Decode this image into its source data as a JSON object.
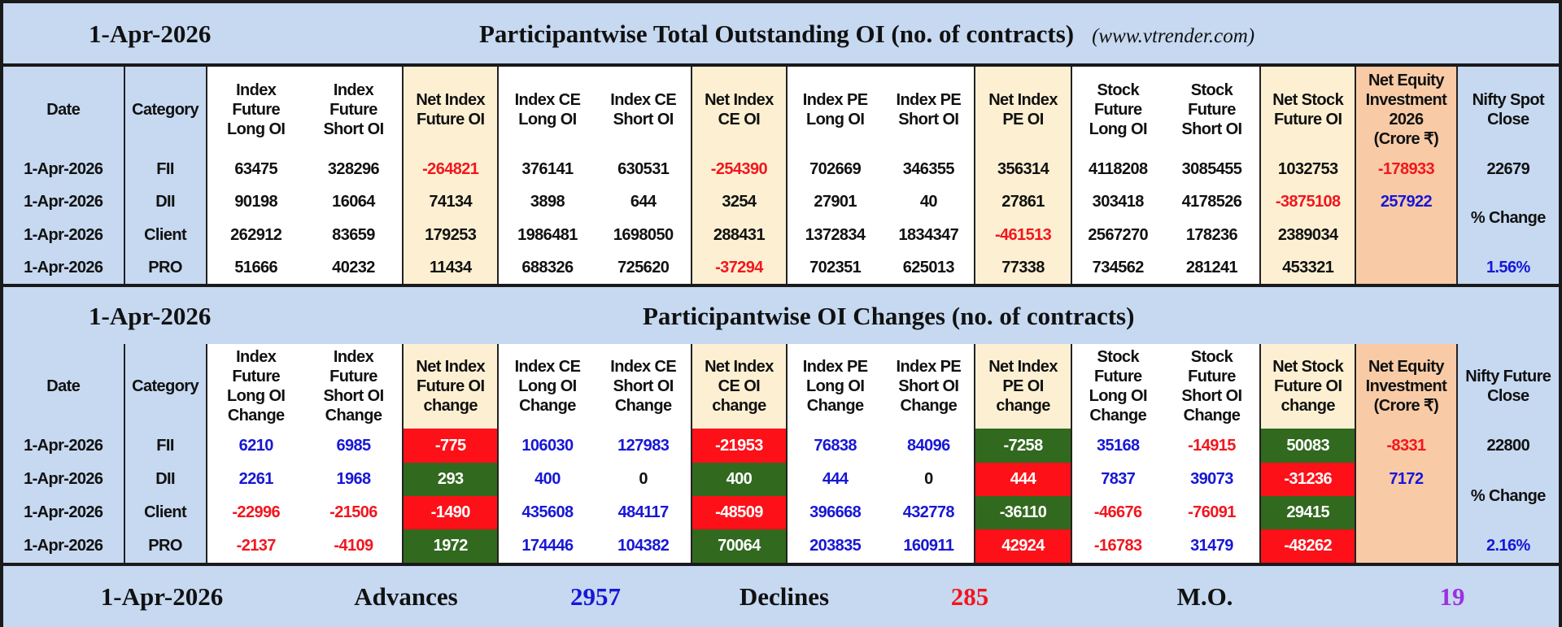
{
  "table1": {
    "date": "1-Apr-2026",
    "title": "Participantwise Total Outstanding OI (no. of contracts)",
    "source": "(www.vtrender.com)",
    "headers": [
      "Date",
      "Category",
      "Index\nFuture\nLong OI",
      "Index\nFuture\nShort OI",
      "Net Index\nFuture OI",
      "Index CE\nLong OI",
      "Index CE\nShort OI",
      "Net Index\nCE OI",
      "Index PE\nLong OI",
      "Index PE\nShort OI",
      "Net Index\nPE OI",
      "Stock\nFuture\nLong OI",
      "Stock\nFuture\nShort OI",
      "Net Stock\nFuture OI",
      "Net Equity\nInvestment\n2026\n(Crore ₹)",
      "Nifty Spot\nClose"
    ],
    "rows": [
      {
        "date": "1-Apr-2026",
        "category": "FII",
        "cells": [
          {
            "v": "63475",
            "c": "black"
          },
          {
            "v": "328296",
            "c": "black"
          },
          {
            "v": "-264821",
            "c": "red"
          },
          {
            "v": "376141",
            "c": "black"
          },
          {
            "v": "630531",
            "c": "black"
          },
          {
            "v": "-254390",
            "c": "red"
          },
          {
            "v": "702669",
            "c": "black"
          },
          {
            "v": "346355",
            "c": "black"
          },
          {
            "v": "356314",
            "c": "black"
          },
          {
            "v": "4118208",
            "c": "black"
          },
          {
            "v": "3085455",
            "c": "black"
          },
          {
            "v": "1032753",
            "c": "black"
          }
        ]
      },
      {
        "date": "1-Apr-2026",
        "category": "DII",
        "cells": [
          {
            "v": "90198",
            "c": "black"
          },
          {
            "v": "16064",
            "c": "black"
          },
          {
            "v": "74134",
            "c": "black"
          },
          {
            "v": "3898",
            "c": "black"
          },
          {
            "v": "644",
            "c": "black"
          },
          {
            "v": "3254",
            "c": "black"
          },
          {
            "v": "27901",
            "c": "black"
          },
          {
            "v": "40",
            "c": "black"
          },
          {
            "v": "27861",
            "c": "black"
          },
          {
            "v": "303418",
            "c": "black"
          },
          {
            "v": "4178526",
            "c": "black"
          },
          {
            "v": "-3875108",
            "c": "red"
          }
        ]
      },
      {
        "date": "1-Apr-2026",
        "category": "Client",
        "cells": [
          {
            "v": "262912",
            "c": "black"
          },
          {
            "v": "83659",
            "c": "black"
          },
          {
            "v": "179253",
            "c": "black"
          },
          {
            "v": "1986481",
            "c": "black"
          },
          {
            "v": "1698050",
            "c": "black"
          },
          {
            "v": "288431",
            "c": "black"
          },
          {
            "v": "1372834",
            "c": "black"
          },
          {
            "v": "1834347",
            "c": "black"
          },
          {
            "v": "-461513",
            "c": "red"
          },
          {
            "v": "2567270",
            "c": "black"
          },
          {
            "v": "178236",
            "c": "black"
          },
          {
            "v": "2389034",
            "c": "black"
          }
        ]
      },
      {
        "date": "1-Apr-2026",
        "category": "PRO",
        "cells": [
          {
            "v": "51666",
            "c": "black"
          },
          {
            "v": "40232",
            "c": "black"
          },
          {
            "v": "11434",
            "c": "black"
          },
          {
            "v": "688326",
            "c": "black"
          },
          {
            "v": "725620",
            "c": "black"
          },
          {
            "v": "-37294",
            "c": "red"
          },
          {
            "v": "702351",
            "c": "black"
          },
          {
            "v": "625013",
            "c": "black"
          },
          {
            "v": "77338",
            "c": "black"
          },
          {
            "v": "734562",
            "c": "black"
          },
          {
            "v": "281241",
            "c": "black"
          },
          {
            "v": "453321",
            "c": "black"
          }
        ]
      }
    ],
    "net_equity": [
      {
        "v": "-178933",
        "c": "red"
      },
      {
        "v": "257922",
        "c": "blue"
      }
    ],
    "nifty": {
      "close": "22679",
      "pct_label": "% Change",
      "pct": "1.56%"
    }
  },
  "table2": {
    "date": "1-Apr-2026",
    "title": "Participantwise OI Changes (no. of contracts)",
    "headers": [
      "Date",
      "Category",
      "Index\nFuture\nLong OI\nChange",
      "Index\nFuture\nShort OI\nChange",
      "Net Index\nFuture OI\nchange",
      "Index CE\nLong OI\nChange",
      "Index CE\nShort OI\nChange",
      "Net Index\nCE OI\nchange",
      "Index PE\nLong OI\nChange",
      "Index PE\nShort OI\nChange",
      "Net Index\nPE OI\nchange",
      "Stock\nFuture\nLong OI\nChange",
      "Stock\nFuture\nShort OI\nChange",
      "Net Stock\nFuture OI\nchange",
      "Net Equity\nInvestment\n(Crore ₹)",
      "Nifty Future\nClose"
    ],
    "rows": [
      {
        "date": "1-Apr-2026",
        "category": "FII",
        "cells": [
          {
            "v": "6210",
            "c": "blue"
          },
          {
            "v": "6985",
            "c": "blue"
          },
          {
            "v": "-775",
            "c": "bg-red"
          },
          {
            "v": "106030",
            "c": "blue"
          },
          {
            "v": "127983",
            "c": "blue"
          },
          {
            "v": "-21953",
            "c": "bg-red"
          },
          {
            "v": "76838",
            "c": "blue"
          },
          {
            "v": "84096",
            "c": "blue"
          },
          {
            "v": "-7258",
            "c": "bg-green"
          },
          {
            "v": "35168",
            "c": "blue"
          },
          {
            "v": "-14915",
            "c": "red"
          },
          {
            "v": "50083",
            "c": "bg-green"
          }
        ]
      },
      {
        "date": "1-Apr-2026",
        "category": "DII",
        "cells": [
          {
            "v": "2261",
            "c": "blue"
          },
          {
            "v": "1968",
            "c": "blue"
          },
          {
            "v": "293",
            "c": "bg-green"
          },
          {
            "v": "400",
            "c": "blue"
          },
          {
            "v": "0",
            "c": "black"
          },
          {
            "v": "400",
            "c": "bg-green"
          },
          {
            "v": "444",
            "c": "blue"
          },
          {
            "v": "0",
            "c": "black"
          },
          {
            "v": "444",
            "c": "bg-red"
          },
          {
            "v": "7837",
            "c": "blue"
          },
          {
            "v": "39073",
            "c": "blue"
          },
          {
            "v": "-31236",
            "c": "bg-red"
          }
        ]
      },
      {
        "date": "1-Apr-2026",
        "category": "Client",
        "cells": [
          {
            "v": "-22996",
            "c": "red"
          },
          {
            "v": "-21506",
            "c": "red"
          },
          {
            "v": "-1490",
            "c": "bg-red"
          },
          {
            "v": "435608",
            "c": "blue"
          },
          {
            "v": "484117",
            "c": "blue"
          },
          {
            "v": "-48509",
            "c": "bg-red"
          },
          {
            "v": "396668",
            "c": "blue"
          },
          {
            "v": "432778",
            "c": "blue"
          },
          {
            "v": "-36110",
            "c": "bg-green"
          },
          {
            "v": "-46676",
            "c": "red"
          },
          {
            "v": "-76091",
            "c": "red"
          },
          {
            "v": "29415",
            "c": "bg-green"
          }
        ]
      },
      {
        "date": "1-Apr-2026",
        "category": "PRO",
        "cells": [
          {
            "v": "-2137",
            "c": "red"
          },
          {
            "v": "-4109",
            "c": "red"
          },
          {
            "v": "1972",
            "c": "bg-green"
          },
          {
            "v": "174446",
            "c": "blue"
          },
          {
            "v": "104382",
            "c": "blue"
          },
          {
            "v": "70064",
            "c": "bg-green"
          },
          {
            "v": "203835",
            "c": "blue"
          },
          {
            "v": "160911",
            "c": "blue"
          },
          {
            "v": "42924",
            "c": "bg-red"
          },
          {
            "v": "-16783",
            "c": "red"
          },
          {
            "v": "31479",
            "c": "blue"
          },
          {
            "v": "-48262",
            "c": "bg-red"
          }
        ]
      }
    ],
    "net_equity": [
      {
        "v": "-8331",
        "c": "red"
      },
      {
        "v": "7172",
        "c": "blue"
      }
    ],
    "nifty": {
      "close": "22800",
      "pct_label": "% Change",
      "pct": "2.16%"
    }
  },
  "footer": {
    "date": "1-Apr-2026",
    "advances_label": "Advances",
    "advances": "2957",
    "declines_label": "Declines",
    "declines": "285",
    "mo_label": "M.O.",
    "mo": "19"
  },
  "colors": {
    "band_bg": "#c6d9f1",
    "net_col_bg": "#fdf0d2",
    "equity_col_bg": "#f8cba6",
    "negative_bg": "#fe1018",
    "positive_bg": "#31691f",
    "negative_text": "#f2161e",
    "positive_text": "#1717d6",
    "mo_text": "#9b30e0"
  }
}
